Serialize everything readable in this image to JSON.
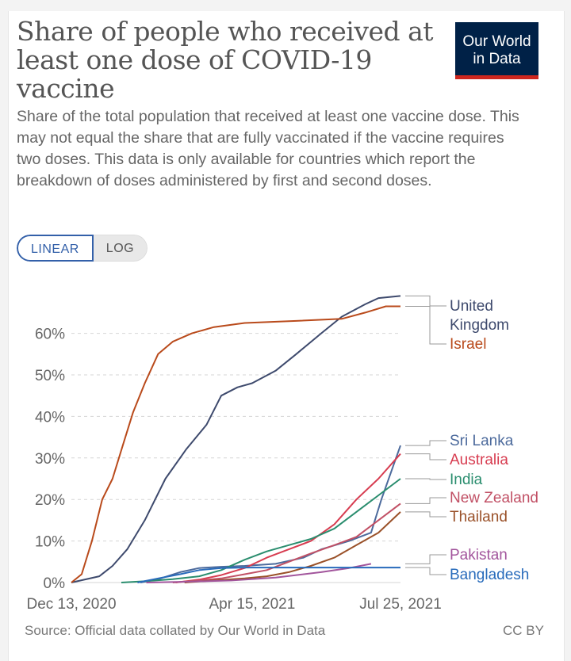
{
  "header": {
    "title": "Share of people who received at least one dose of COVID-19 vaccine",
    "subtitle": "Share of the total population that received at least one vaccine dose. This may not equal the share that are fully vaccinated if the vaccine requires two doses. This data is only available for countries which report the breakdown of doses administered by first and second doses.",
    "logo_line1": "Our World",
    "logo_line2": "in Data"
  },
  "toggle": {
    "linear_label": "LINEAR",
    "log_label": "LOG",
    "selected": "LINEAR"
  },
  "footer": {
    "source": "Source: Official data collated by Our World in Data",
    "license": "CC BY"
  },
  "colors": {
    "brand_navy": "#002147",
    "brand_red": "#ce261e",
    "accent_blue": "#3360a9"
  },
  "chart_data": {
    "type": "line",
    "x_start": "2020-12-13",
    "x_end": "2021-07-25",
    "x_ticks": [
      "Dec 13, 2020",
      "Apr 15, 2021",
      "Jul 25, 2021"
    ],
    "y_ticks": [
      "0%",
      "10%",
      "20%",
      "30%",
      "40%",
      "50%",
      "60%"
    ],
    "ylim": [
      0,
      68
    ],
    "grid": "horizontal dashed",
    "series": [
      {
        "name": "United Kingdom",
        "color": "#3e4a6d",
        "points": [
          [
            "2020-12-13",
            0
          ],
          [
            "2021-01-01",
            1.5
          ],
          [
            "2021-01-10",
            4
          ],
          [
            "2021-01-20",
            8
          ],
          [
            "2021-02-01",
            15
          ],
          [
            "2021-02-15",
            25
          ],
          [
            "2021-03-01",
            32
          ],
          [
            "2021-03-15",
            38
          ],
          [
            "2021-03-25",
            45
          ],
          [
            "2021-04-05",
            47
          ],
          [
            "2021-04-15",
            48
          ],
          [
            "2021-05-01",
            51
          ],
          [
            "2021-05-15",
            55
          ],
          [
            "2021-06-01",
            60
          ],
          [
            "2021-06-15",
            64
          ],
          [
            "2021-07-01",
            67
          ],
          [
            "2021-07-10",
            68.5
          ],
          [
            "2021-07-25",
            69
          ]
        ]
      },
      {
        "name": "Israel",
        "color": "#b94a1b",
        "points": [
          [
            "2020-12-13",
            0
          ],
          [
            "2020-12-20",
            2
          ],
          [
            "2020-12-27",
            10
          ],
          [
            "2021-01-03",
            20
          ],
          [
            "2021-01-10",
            25
          ],
          [
            "2021-01-17",
            33
          ],
          [
            "2021-01-24",
            41
          ],
          [
            "2021-02-01",
            48
          ],
          [
            "2021-02-10",
            55
          ],
          [
            "2021-02-20",
            58
          ],
          [
            "2021-03-05",
            60
          ],
          [
            "2021-03-20",
            61.5
          ],
          [
            "2021-04-10",
            62.5
          ],
          [
            "2021-05-15",
            63
          ],
          [
            "2021-06-15",
            63.5
          ],
          [
            "2021-07-01",
            65
          ],
          [
            "2021-07-15",
            66.5
          ],
          [
            "2021-07-25",
            66.5
          ]
        ]
      },
      {
        "name": "Sri Lanka",
        "color": "#4c6a9c",
        "points": [
          [
            "2021-01-29",
            0
          ],
          [
            "2021-02-10",
            0.8
          ],
          [
            "2021-02-25",
            2.5
          ],
          [
            "2021-03-10",
            3.5
          ],
          [
            "2021-03-25",
            3.8
          ],
          [
            "2021-04-10",
            4
          ],
          [
            "2021-05-01",
            4.5
          ],
          [
            "2021-05-20",
            6
          ],
          [
            "2021-06-01",
            8
          ],
          [
            "2021-06-20",
            10
          ],
          [
            "2021-07-05",
            12
          ],
          [
            "2021-07-12",
            20
          ],
          [
            "2021-07-20",
            28
          ],
          [
            "2021-07-25",
            33
          ]
        ]
      },
      {
        "name": "Australia",
        "color": "#d73c50",
        "points": [
          [
            "2021-02-22",
            0
          ],
          [
            "2021-03-10",
            0.7
          ],
          [
            "2021-03-25",
            1.8
          ],
          [
            "2021-04-10",
            3.5
          ],
          [
            "2021-04-25",
            6
          ],
          [
            "2021-05-10",
            8
          ],
          [
            "2021-05-25",
            10
          ],
          [
            "2021-06-10",
            14
          ],
          [
            "2021-06-25",
            20
          ],
          [
            "2021-07-10",
            25
          ],
          [
            "2021-07-25",
            31
          ]
        ]
      },
      {
        "name": "India",
        "color": "#2a8d6e",
        "points": [
          [
            "2021-01-16",
            0
          ],
          [
            "2021-02-01",
            0.3
          ],
          [
            "2021-02-20",
            0.8
          ],
          [
            "2021-03-10",
            1.5
          ],
          [
            "2021-03-25",
            3
          ],
          [
            "2021-04-10",
            5.5
          ],
          [
            "2021-04-25",
            7.5
          ],
          [
            "2021-05-10",
            9
          ],
          [
            "2021-05-25",
            10.5
          ],
          [
            "2021-06-10",
            13
          ],
          [
            "2021-06-25",
            17
          ],
          [
            "2021-07-10",
            21
          ],
          [
            "2021-07-25",
            25
          ]
        ]
      },
      {
        "name": "New Zealand",
        "color": "#c15065",
        "points": [
          [
            "2021-02-20",
            0
          ],
          [
            "2021-03-10",
            0.5
          ],
          [
            "2021-03-25",
            1
          ],
          [
            "2021-04-10",
            2
          ],
          [
            "2021-04-25",
            3
          ],
          [
            "2021-05-10",
            5
          ],
          [
            "2021-05-25",
            7
          ],
          [
            "2021-06-10",
            9
          ],
          [
            "2021-06-25",
            11
          ],
          [
            "2021-07-10",
            15
          ],
          [
            "2021-07-25",
            19
          ]
        ]
      },
      {
        "name": "Thailand",
        "color": "#9a5129",
        "points": [
          [
            "2021-02-28",
            0
          ],
          [
            "2021-03-20",
            0.5
          ],
          [
            "2021-04-10",
            1
          ],
          [
            "2021-04-25",
            1.5
          ],
          [
            "2021-05-10",
            2.5
          ],
          [
            "2021-05-25",
            4
          ],
          [
            "2021-06-10",
            6
          ],
          [
            "2021-06-25",
            9
          ],
          [
            "2021-07-10",
            12
          ],
          [
            "2021-07-25",
            17
          ]
        ]
      },
      {
        "name": "Pakistan",
        "color": "#a2559c",
        "points": [
          [
            "2021-02-02",
            0
          ],
          [
            "2021-03-01",
            0.2
          ],
          [
            "2021-04-01",
            0.5
          ],
          [
            "2021-05-01",
            1.2
          ],
          [
            "2021-06-01",
            2.5
          ],
          [
            "2021-06-20",
            3.5
          ],
          [
            "2021-07-05",
            4.5
          ]
        ]
      },
      {
        "name": "Bangladesh",
        "color": "#286bbb",
        "points": [
          [
            "2021-01-27",
            0
          ],
          [
            "2021-02-10",
            1
          ],
          [
            "2021-02-25",
            2
          ],
          [
            "2021-03-10",
            3
          ],
          [
            "2021-03-25",
            3.5
          ],
          [
            "2021-04-10",
            3.6
          ],
          [
            "2021-05-01",
            3.6
          ],
          [
            "2021-06-01",
            3.6
          ],
          [
            "2021-07-01",
            3.6
          ],
          [
            "2021-07-25",
            3.6
          ]
        ]
      }
    ],
    "labels": [
      {
        "series": "United Kingdom",
        "text": [
          "United",
          "Kingdom"
        ],
        "color": "#3e4a6d"
      },
      {
        "series": "Israel",
        "text": [
          "Israel"
        ],
        "color": "#b94a1b"
      },
      {
        "series": "Sri Lanka",
        "text": [
          "Sri Lanka"
        ],
        "color": "#4c6a9c"
      },
      {
        "series": "Australia",
        "text": [
          "Australia"
        ],
        "color": "#d73c50"
      },
      {
        "series": "India",
        "text": [
          "India"
        ],
        "color": "#2a8d6e"
      },
      {
        "series": "New Zealand",
        "text": [
          "New Zealand"
        ],
        "color": "#c15065"
      },
      {
        "series": "Thailand",
        "text": [
          "Thailand"
        ],
        "color": "#9a5129"
      },
      {
        "series": "Pakistan",
        "text": [
          "Pakistan"
        ],
        "color": "#a2559c"
      },
      {
        "series": "Bangladesh",
        "text": [
          "Bangladesh"
        ],
        "color": "#286bbb"
      }
    ]
  }
}
